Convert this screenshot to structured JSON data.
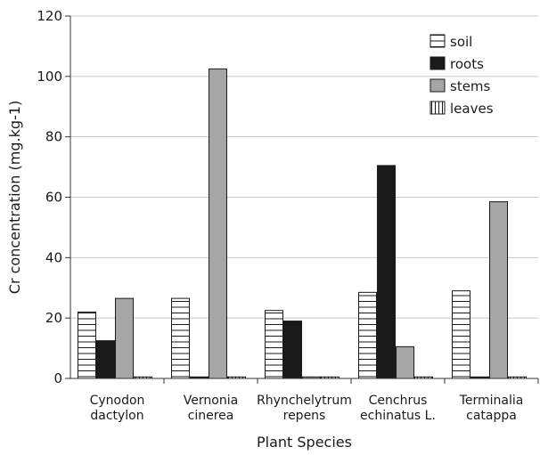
{
  "chart_data": {
    "type": "bar",
    "title": "",
    "xlabel": "Plant Species",
    "ylabel": "Cr concentration (mg.kg-1)",
    "ylim": [
      0,
      120
    ],
    "yticks": [
      "0",
      "20",
      "40",
      "60",
      "80",
      "100",
      "120"
    ],
    "grid": true,
    "legend_position": "top-right",
    "categories": [
      [
        "Cynodon",
        "dactylon"
      ],
      [
        "Vernonia",
        "cinerea"
      ],
      [
        "Rhynchelytrum",
        "repens"
      ],
      [
        "Cenchrus",
        "echinatus L."
      ],
      [
        "Terminalia",
        "catappa"
      ]
    ],
    "series": [
      {
        "name": "soil",
        "pattern": "horizontal-lines",
        "color": "#ffffff",
        "values": [
          22,
          26.5,
          22.5,
          28.5,
          29
        ]
      },
      {
        "name": "roots",
        "pattern": "solid",
        "color": "#1a1a1a",
        "values": [
          12.5,
          0.5,
          19,
          70.5,
          0.5
        ]
      },
      {
        "name": "stems",
        "pattern": "solid",
        "color": "#a6a6a6",
        "values": [
          26.5,
          102.5,
          0.5,
          10.5,
          58.5
        ]
      },
      {
        "name": "leaves",
        "pattern": "vertical-lines",
        "color": "#ffffff",
        "values": [
          0.5,
          0.5,
          0.5,
          0.5,
          0.5
        ]
      }
    ]
  }
}
